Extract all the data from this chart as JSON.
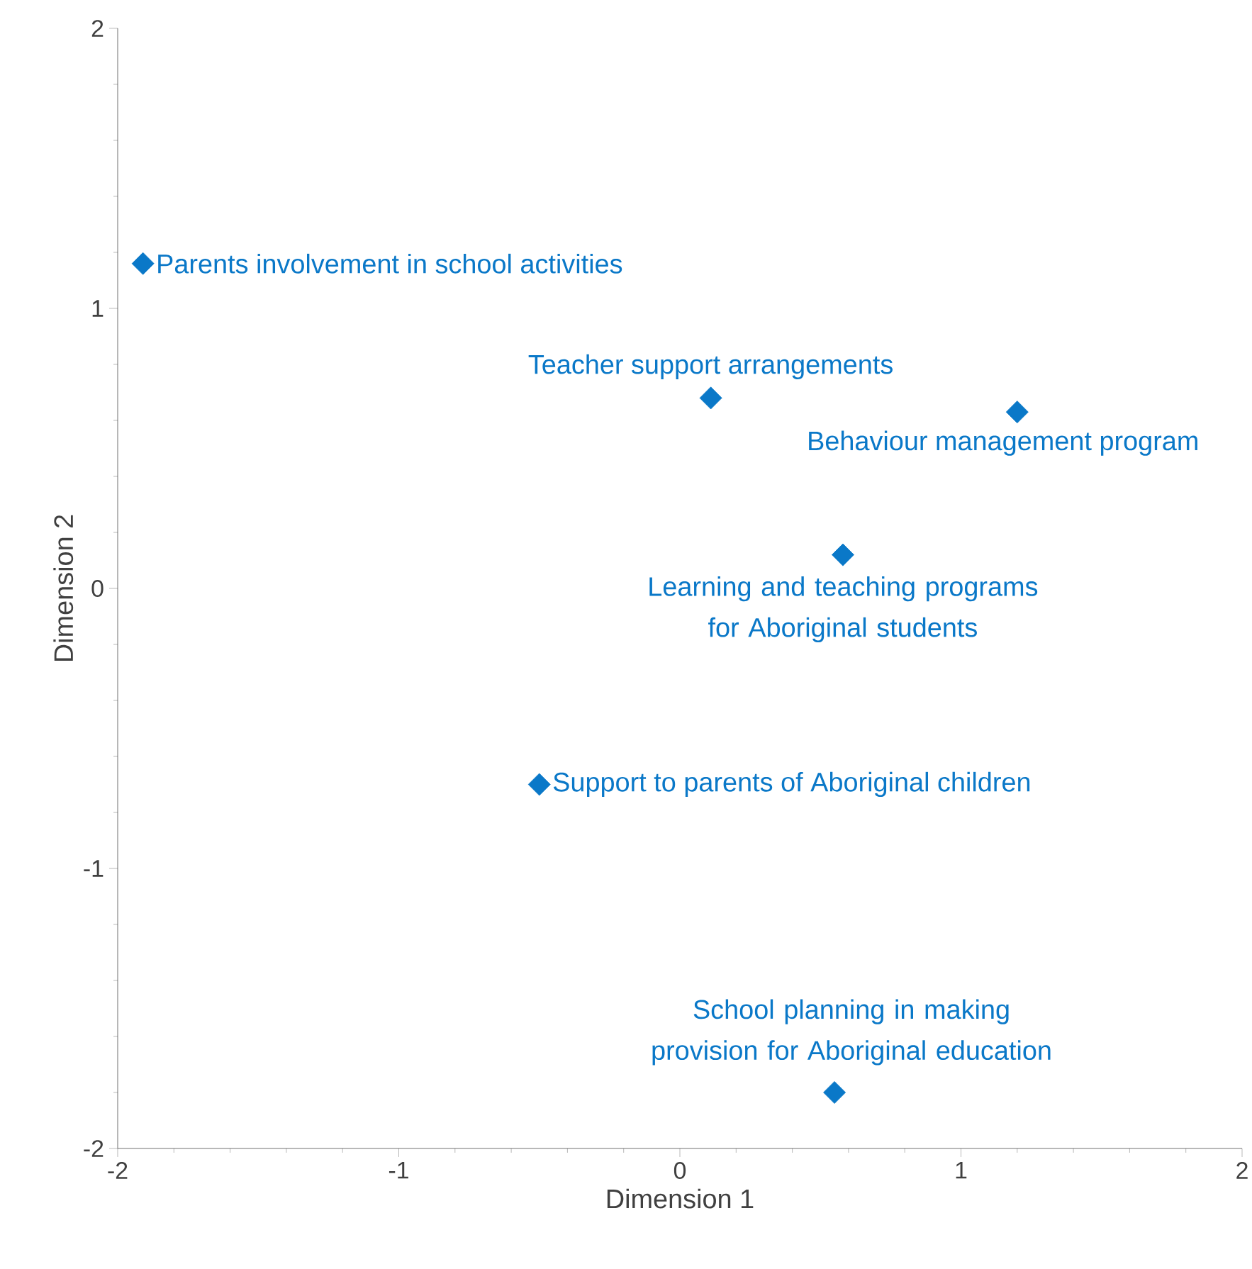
{
  "chart_data": {
    "type": "scatter",
    "xlabel": "Dimension  1",
    "ylabel": "Dimension  2",
    "x": [
      -1.91,
      0.11,
      1.2,
      0.58,
      -0.5,
      0.55
    ],
    "values": [
      1.16,
      0.68,
      0.63,
      0.12,
      -0.7,
      -1.8
    ],
    "color": "#0a78c8",
    "marker": "diamond",
    "xlim": [
      -2,
      2
    ],
    "ylim": [
      -2,
      2
    ],
    "xticks": [
      -2,
      -1,
      0,
      1,
      2
    ],
    "yticks": [
      -2,
      -1,
      0,
      1,
      2
    ],
    "grid": false,
    "annotations": [
      {
        "text": "Parents involvement in school activities",
        "x": -1.91,
        "y": 1.16
      },
      {
        "text": "Teacher support arrangements",
        "x": 0.11,
        "y": 0.68
      },
      {
        "text": "Behaviour management program",
        "x": 1.2,
        "y": 0.63
      },
      {
        "text": "Learning and teaching programs for Aboriginal students",
        "x": 0.58,
        "y": 0.12
      },
      {
        "text": "Support to parents of Aboriginal children",
        "x": -0.5,
        "y": -0.7
      },
      {
        "text": "School planning in making provision for Aboriginal education",
        "x": 0.55,
        "y": -1.8
      }
    ]
  }
}
